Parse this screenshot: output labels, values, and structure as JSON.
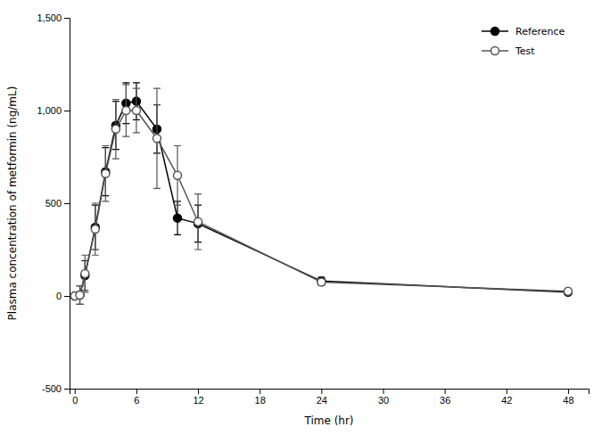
{
  "chart_data": {
    "type": "line",
    "xlabel": "Time (hr)",
    "ylabel": "Plasma concentration of metformin (ng/mL)",
    "x": [
      0,
      0.5,
      1,
      2,
      3,
      4,
      5,
      6,
      8,
      10,
      12,
      24,
      48
    ],
    "series": [
      {
        "name": "Reference",
        "color": "#000000",
        "marker": "circle",
        "values": [
          0,
          5,
          110,
          370,
          670,
          920,
          1040,
          1050,
          900,
          420,
          390,
          80,
          20
        ],
        "error_low": [
          5,
          50,
          80,
          120,
          130,
          130,
          110,
          100,
          130,
          90,
          100,
          20,
          10
        ],
        "error_high": [
          5,
          50,
          80,
          120,
          130,
          130,
          110,
          100,
          130,
          90,
          100,
          20,
          10
        ]
      },
      {
        "name": "Test",
        "color": "#555555",
        "marker": "circle-open",
        "values": [
          0,
          5,
          120,
          360,
          660,
          900,
          1000,
          1000,
          850,
          650,
          400,
          75,
          25
        ],
        "error_low": [
          5,
          50,
          100,
          140,
          150,
          160,
          140,
          120,
          270,
          160,
          150,
          18,
          12
        ],
        "error_high": [
          5,
          50,
          100,
          140,
          150,
          160,
          140,
          120,
          270,
          160,
          150,
          18,
          12
        ]
      }
    ],
    "xlim": [
      -0.5,
      50
    ],
    "ylim": [
      -500,
      1500
    ],
    "xticks": [
      0,
      6,
      12,
      18,
      24,
      30,
      36,
      42,
      48
    ],
    "yticks": [
      -500,
      0,
      500,
      {
        "value": 1000,
        "label": "1,000"
      },
      {
        "value": 1500,
        "label": "1,500"
      }
    ],
    "legend": "upper right",
    "grid": false
  }
}
